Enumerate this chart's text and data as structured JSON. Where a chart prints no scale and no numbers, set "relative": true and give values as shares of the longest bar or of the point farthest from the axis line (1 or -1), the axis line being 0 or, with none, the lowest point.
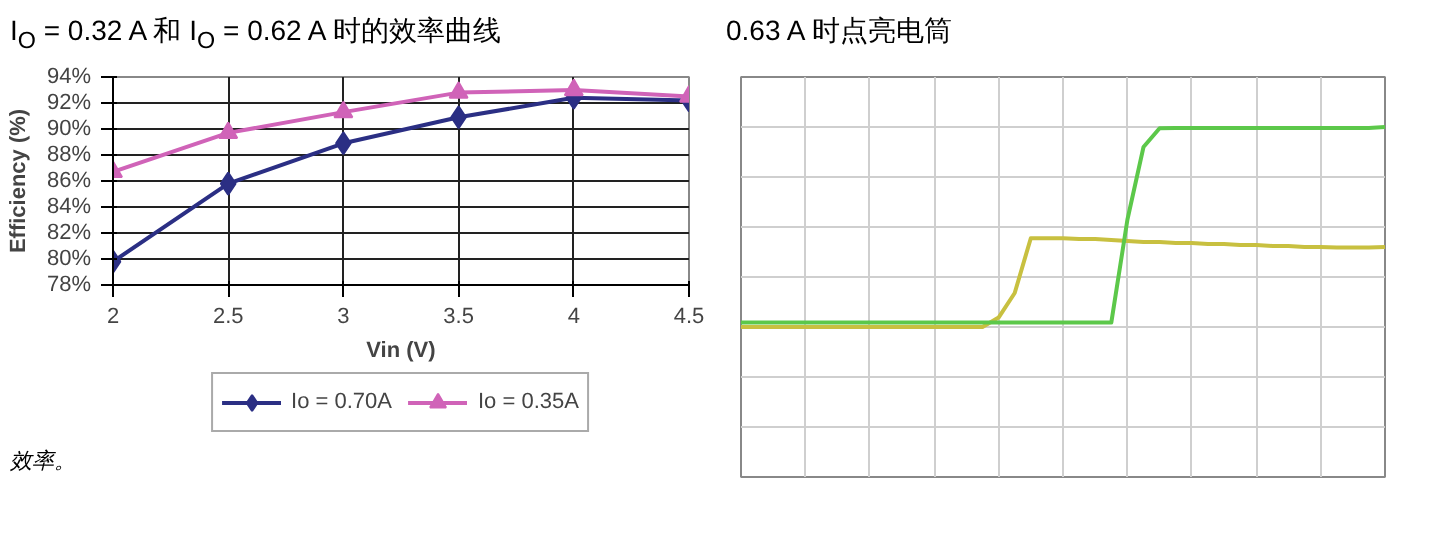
{
  "chart_data": [
    {
      "type": "line",
      "title": "I$_{O}$ = 0.32 A 和 I$_{O}$ = 0.62 A 时的效率曲线",
      "xlabel": "Vin (V)",
      "ylabel": "Efficiency (%)",
      "x": [
        2,
        2.5,
        3,
        3.5,
        4,
        4.5
      ],
      "series": [
        {
          "name": "Io = 0.70A",
          "color": "#2b2f84",
          "marker": "diamond",
          "values": [
            79.8,
            85.8,
            88.9,
            90.9,
            92.4,
            92.2
          ]
        },
        {
          "name": "Io = 0.35A",
          "color": "#d063b8",
          "marker": "triangle",
          "values": [
            86.7,
            89.7,
            91.3,
            92.8,
            93.0,
            92.5
          ]
        }
      ],
      "xlim": [
        2,
        4.5
      ],
      "xticks": [
        2,
        2.5,
        3,
        3.5,
        4,
        4.5
      ],
      "ylim": [
        78,
        94
      ],
      "yticks": [
        {
          "value": 78,
          "label": "78%"
        },
        {
          "value": 80,
          "label": "80%"
        },
        {
          "value": 82,
          "label": "82%"
        },
        {
          "value": 84,
          "label": "84%"
        },
        {
          "value": 86,
          "label": "86%"
        },
        {
          "value": 88,
          "label": "88%"
        },
        {
          "value": 90,
          "label": "90%"
        },
        {
          "value": 92,
          "label": "92%"
        },
        {
          "value": 94,
          "label": "94%"
        }
      ],
      "grid": true,
      "legend": "bottom",
      "annotations": [
        "效率。"
      ]
    },
    {
      "type": "line",
      "title": "0.63 A 时点亮电筒",
      "relative": true,
      "grid": true,
      "legend": false,
      "categories": [
        null,
        null,
        null,
        null,
        null,
        null,
        null,
        null,
        null,
        null,
        null,
        null,
        null,
        null,
        null,
        null,
        null,
        null,
        null,
        null,
        null,
        null,
        null,
        null,
        null,
        null,
        null,
        null,
        null,
        null,
        null,
        null,
        null,
        null,
        null,
        null,
        null,
        null,
        null,
        null,
        null
      ],
      "series": [
        {
          "color": "#c8c040",
          "values": [
            0,
            0,
            0,
            0,
            0,
            0,
            0,
            0,
            0,
            0,
            0,
            0,
            0,
            0,
            0,
            0,
            0.047,
            0.17,
            0.444,
            0.444,
            0.444,
            0.44,
            0.44,
            0.435,
            0.43,
            0.425,
            0.425,
            0.42,
            0.42,
            0.415,
            0.415,
            0.41,
            0.41,
            0.405,
            0.405,
            0.4,
            0.4,
            0.397,
            0.397,
            0.397,
            0.4
          ]
        },
        {
          "color": "#5cc84a",
          "values": [
            0.022,
            0.022,
            0.022,
            0.022,
            0.022,
            0.022,
            0.022,
            0.022,
            0.022,
            0.022,
            0.022,
            0.022,
            0.022,
            0.022,
            0.022,
            0.022,
            0.022,
            0.022,
            0.022,
            0.022,
            0.022,
            0.022,
            0.022,
            0.022,
            0.536,
            0.9,
            0.994,
            0.995,
            0.995,
            0.995,
            0.995,
            0.995,
            0.995,
            0.995,
            0.995,
            0.995,
            0.995,
            0.995,
            0.995,
            0.995,
            1
          ]
        }
      ]
    }
  ]
}
